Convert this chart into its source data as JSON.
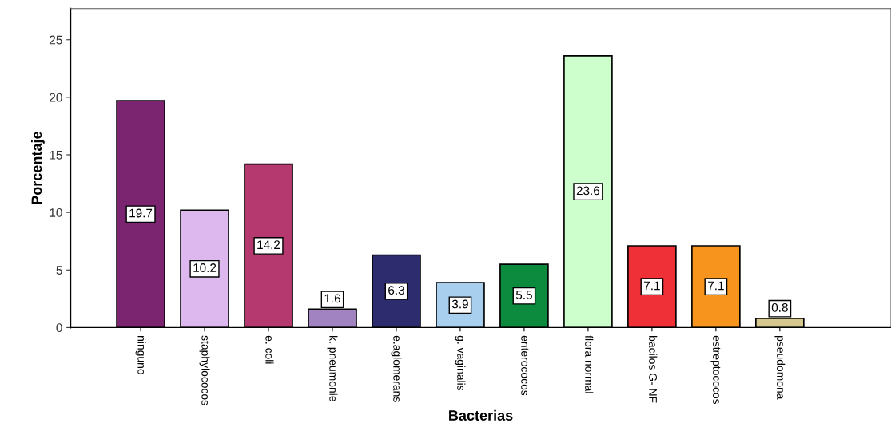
{
  "chart_data": {
    "type": "bar",
    "xlabel": "Bacterias",
    "ylabel": "Porcentaje",
    "categories": [
      "ninguno",
      "staphylococos",
      "e. coli",
      "k. pneumonie",
      "e.aglomerans",
      "g. vaginalis",
      "enterococos",
      "flora normal",
      "bacilos G- NF",
      "estreptococos",
      "pseudomona"
    ],
    "values": [
      19.7,
      10.2,
      14.2,
      1.6,
      6.3,
      3.9,
      5.5,
      23.6,
      7.1,
      7.1,
      0.8
    ],
    "colors": [
      "#7b2470",
      "#dcb8ef",
      "#b5386e",
      "#a283c2",
      "#2c2c6e",
      "#a8cfee",
      "#0c8a3e",
      "#ccffcc",
      "#ef3036",
      "#f7941d",
      "#d4c88e"
    ],
    "ylim": [
      0,
      27.7
    ],
    "yticks": [
      0,
      5,
      10,
      15,
      20,
      25
    ],
    "data_labels": true,
    "grid": false,
    "legend": false
  }
}
